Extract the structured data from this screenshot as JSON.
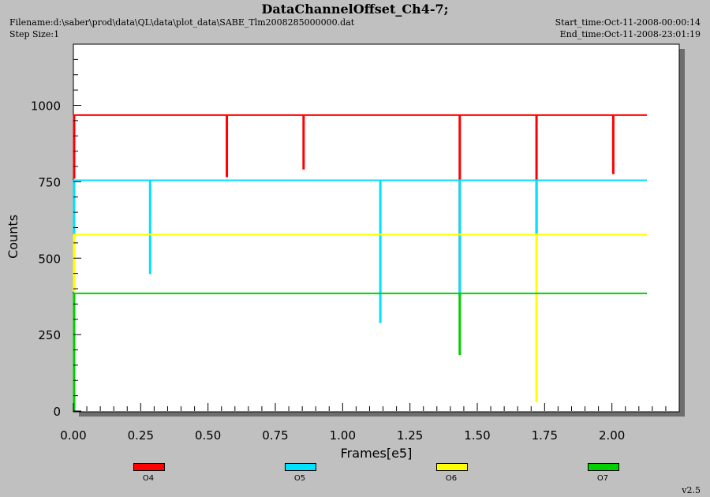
{
  "header": {
    "title": "DataChannelOffset_Ch4-7;",
    "filename": "Filename:d:\\saber\\prod\\data\\QL\\data\\plot_data\\SABE_Tlm2008285000000.dat",
    "step_size": "Step Size:1",
    "start_time": "Start_time:Oct-11-2008-00:00:14",
    "end_time": "End_time:Oct-11-2008-23:01:19"
  },
  "version": "v2.5",
  "chart_data": {
    "type": "line",
    "title": "DataChannelOffset_Ch4-7;",
    "xlabel": "Frames[e5]",
    "ylabel": "Counts",
    "xlim": [
      0,
      2.25
    ],
    "ylim": [
      0,
      1200
    ],
    "x_ticks": [
      "0.00",
      "0.25",
      "0.50",
      "0.75",
      "1.00",
      "1.25",
      "1.50",
      "1.75",
      "2.00"
    ],
    "y_ticks": [
      "0",
      "250",
      "500",
      "750",
      "1000"
    ],
    "x_tick_values": [
      0,
      0.25,
      0.5,
      0.75,
      1.0,
      1.25,
      1.5,
      1.75,
      2.0
    ],
    "y_tick_values": [
      0,
      250,
      500,
      750,
      1000
    ],
    "x_end": 2.13,
    "legend_position": "bottom",
    "series": [
      {
        "name": "O4",
        "color": "#ff0000",
        "baseline": 968,
        "dips": [
          {
            "x": 0.0,
            "y": 760
          },
          {
            "x": 0.57,
            "y": 765
          },
          {
            "x": 0.855,
            "y": 790
          },
          {
            "x": 1.435,
            "y": 375
          },
          {
            "x": 1.72,
            "y": 575
          },
          {
            "x": 2.005,
            "y": 775
          }
        ]
      },
      {
        "name": "O5",
        "color": "#00e0ff",
        "baseline": 755,
        "dips": [
          {
            "x": 0.0,
            "y": 570
          },
          {
            "x": 0.285,
            "y": 448
          },
          {
            "x": 1.14,
            "y": 288
          },
          {
            "x": 1.435,
            "y": 375
          },
          {
            "x": 1.72,
            "y": 575
          }
        ]
      },
      {
        "name": "O6",
        "color": "#ffff00",
        "baseline": 577,
        "dips": [
          {
            "x": 0.0,
            "y": 390
          },
          {
            "x": 1.72,
            "y": 30
          }
        ]
      },
      {
        "name": "O7",
        "color": "#00d000",
        "baseline": 385,
        "dips": [
          {
            "x": 0.0,
            "y": 0
          },
          {
            "x": 1.435,
            "y": 183
          }
        ]
      }
    ]
  }
}
